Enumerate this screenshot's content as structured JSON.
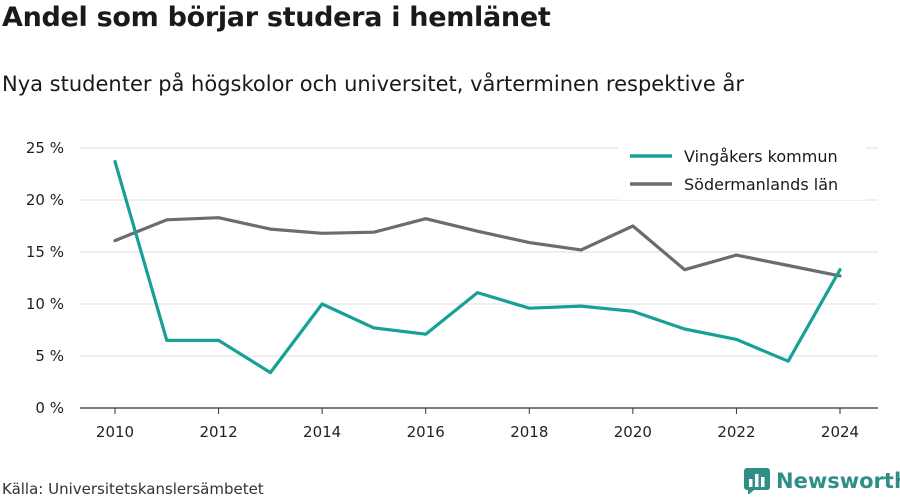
{
  "header": {
    "title": "Andel som börjar studera i hemlänet",
    "subtitle": "Nya studenter på högskolor och universitet, vårterminen respektive år"
  },
  "footer": {
    "source": "Källa: Universitetskanslersämbetet",
    "brand": "Newsworthy",
    "brand_icon": "bar-chart-logo-icon",
    "brand_color": "#2f8f86"
  },
  "chart_data": {
    "type": "line",
    "x": [
      2010,
      2011,
      2012,
      2013,
      2014,
      2015,
      2016,
      2017,
      2018,
      2019,
      2020,
      2021,
      2022,
      2023,
      2024
    ],
    "series": [
      {
        "name": "Vingåkers kommun",
        "color": "#17a096",
        "values": [
          23.7,
          6.5,
          6.5,
          3.4,
          10.0,
          7.7,
          7.1,
          11.1,
          9.6,
          9.8,
          9.3,
          7.6,
          6.6,
          4.5,
          13.3
        ]
      },
      {
        "name": "Södermanlands län",
        "color": "#6b6b70",
        "values": [
          16.1,
          18.1,
          18.3,
          17.2,
          16.8,
          16.9,
          18.2,
          17.0,
          15.9,
          15.2,
          17.5,
          13.3,
          14.7,
          13.7,
          12.7
        ]
      }
    ],
    "xticks": [
      2010,
      2012,
      2014,
      2016,
      2018,
      2020,
      2022,
      2024
    ],
    "yticks": [
      {
        "value": 0,
        "label": "0 %"
      },
      {
        "value": 5,
        "label": "5 %"
      },
      {
        "value": 10,
        "label": "10 %"
      },
      {
        "value": 15,
        "label": "15 %"
      },
      {
        "value": 20,
        "label": "20 %"
      },
      {
        "value": 25,
        "label": "25 %"
      }
    ],
    "ylim": [
      0,
      25
    ],
    "xlim": [
      2010,
      2024
    ],
    "grid": true,
    "legend": "top-right"
  }
}
